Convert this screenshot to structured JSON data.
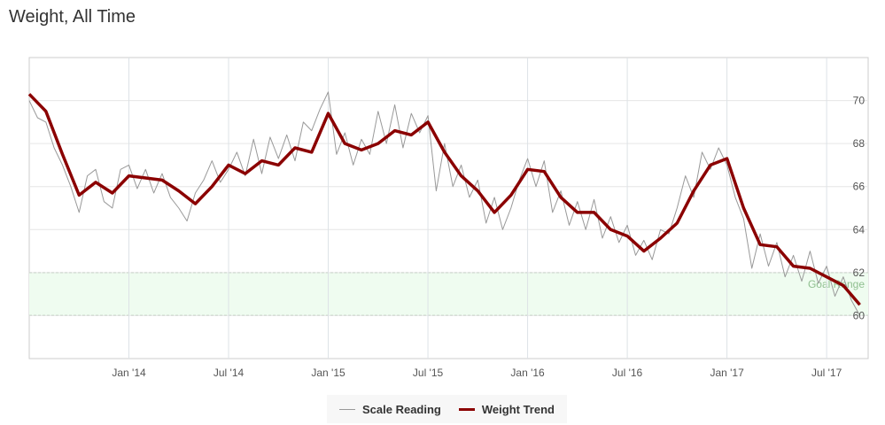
{
  "chart_data": {
    "type": "line",
    "title": "Weight, All Time",
    "xlabel": "",
    "ylabel": "",
    "ylim": [
      58,
      72
    ],
    "y_ticks": [
      60,
      62,
      64,
      66,
      68,
      70
    ],
    "x_unit": "months since Jul 2013",
    "xlim": [
      0,
      50.5
    ],
    "x_ticks": [
      {
        "x": 6,
        "label": "Jan '14"
      },
      {
        "x": 12,
        "label": "Jul '14"
      },
      {
        "x": 18,
        "label": "Jan '15"
      },
      {
        "x": 24,
        "label": "Jul '15"
      },
      {
        "x": 30,
        "label": "Jan '16"
      },
      {
        "x": 36,
        "label": "Jul '16"
      },
      {
        "x": 42,
        "label": "Jan '17"
      },
      {
        "x": 48,
        "label": "Jul '17"
      }
    ],
    "band": {
      "from": 60,
      "to": 62,
      "label": "Goal Range",
      "color": "#effcf0"
    },
    "grid": true,
    "legend_position": "bottom-center",
    "series": [
      {
        "name": "Scale Reading",
        "color": "#999999",
        "x_step": 0.5,
        "values": [
          70.0,
          69.2,
          69.0,
          67.8,
          67.0,
          66.0,
          64.8,
          66.5,
          66.8,
          65.3,
          65.0,
          66.8,
          67.0,
          65.9,
          66.8,
          65.7,
          66.6,
          65.5,
          65.0,
          64.4,
          65.7,
          66.3,
          67.2,
          66.2,
          66.8,
          67.6,
          66.5,
          68.2,
          66.6,
          68.3,
          67.3,
          68.4,
          67.2,
          69.0,
          68.6,
          69.6,
          70.4,
          67.5,
          68.5,
          67.0,
          68.2,
          67.5,
          69.5,
          68.0,
          69.8,
          67.8,
          69.4,
          68.5,
          69.3,
          65.8,
          68.0,
          66.0,
          67.0,
          65.5,
          66.3,
          64.3,
          65.5,
          64.0,
          65.0,
          66.3,
          67.3,
          66.0,
          67.2,
          64.8,
          65.8,
          64.2,
          65.3,
          64.0,
          65.4,
          63.6,
          64.6,
          63.4,
          64.2,
          62.8,
          63.5,
          62.6,
          64.0,
          63.8,
          65.0,
          66.5,
          65.5,
          67.6,
          66.8,
          67.8,
          67.0,
          65.5,
          64.5,
          62.2,
          63.8,
          62.3,
          63.4,
          61.8,
          62.8,
          61.6,
          63.0,
          61.5,
          62.3,
          60.9,
          61.8,
          60.7,
          60.0
        ]
      },
      {
        "name": "Weight Trend",
        "color": "#8b0000",
        "x_step": 1,
        "values": [
          70.3,
          69.5,
          67.5,
          65.6,
          66.2,
          65.7,
          66.5,
          66.4,
          66.3,
          65.8,
          65.2,
          66.0,
          67.0,
          66.6,
          67.2,
          67.0,
          67.8,
          67.6,
          69.4,
          68.0,
          67.7,
          68.0,
          68.6,
          68.4,
          69.0,
          67.6,
          66.5,
          65.8,
          64.8,
          65.6,
          66.8,
          66.7,
          65.5,
          64.8,
          64.8,
          64.0,
          63.7,
          63.0,
          63.6,
          64.3,
          65.8,
          67.0,
          67.3,
          65.0,
          63.3,
          63.2,
          62.3,
          62.2,
          61.8,
          61.4,
          60.5
        ]
      }
    ]
  }
}
